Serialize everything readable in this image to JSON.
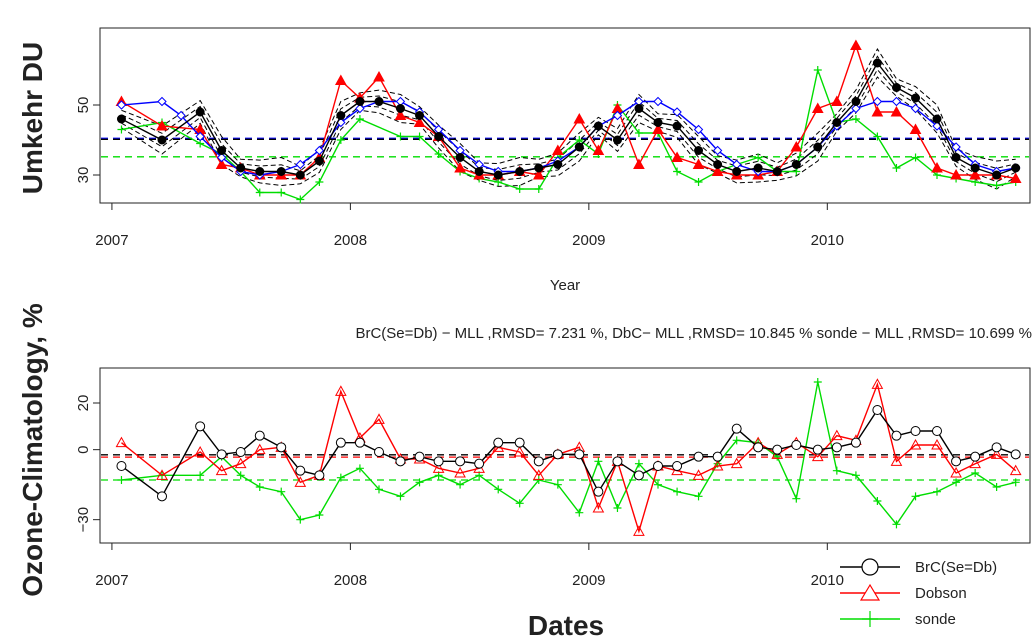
{
  "colors": {
    "brc": "#000000",
    "dobson": "#ff0000",
    "sonde": "#00dd00",
    "umkehr_model": "#0000ff",
    "ensemble": "#000000"
  },
  "chart_data": [
    {
      "type": "line",
      "ylabel": "Umkehr DU",
      "xlabel": "Year",
      "xlim": [
        2006.95,
        2010.85
      ],
      "ylim": [
        22,
        72
      ],
      "x_ticks": [
        "2007",
        "2008",
        "2009",
        "2010"
      ],
      "y_ticks": [
        "30",
        "50"
      ],
      "grid": false,
      "x": [
        2007.04,
        2007.12,
        2007.21,
        2007.29,
        2007.37,
        2007.46,
        2007.54,
        2007.62,
        2007.71,
        2007.79,
        2007.87,
        2007.96,
        2008.04,
        2008.12,
        2008.21,
        2008.29,
        2008.37,
        2008.46,
        2008.54,
        2008.62,
        2008.71,
        2008.79,
        2008.87,
        2008.96,
        2009.04,
        2009.12,
        2009.21,
        2009.29,
        2009.37,
        2009.46,
        2009.54,
        2009.62,
        2009.71,
        2009.79,
        2009.87,
        2009.96,
        2010.04,
        2010.12,
        2010.21,
        2010.29,
        2010.37,
        2010.46,
        2010.54,
        2010.62,
        2010.71,
        2010.79
      ],
      "series": [
        {
          "color_key": "brc",
          "marker": "filled-circle",
          "values": [
            46,
            null,
            40,
            null,
            48,
            37,
            32,
            31,
            31,
            30,
            34,
            47,
            51,
            51,
            49,
            47,
            41,
            35,
            31,
            30,
            31,
            32,
            33,
            38,
            44,
            40,
            49,
            45,
            44,
            37,
            33,
            31,
            32,
            31,
            33,
            38,
            45,
            51,
            62,
            55,
            52,
            46,
            35,
            32,
            30,
            32
          ]
        },
        {
          "color_key": "dobson",
          "marker": "filled-triangle",
          "values": [
            51,
            null,
            44,
            null,
            43,
            33,
            32,
            30,
            30,
            30,
            35,
            57,
            52,
            58,
            47,
            45,
            41,
            32,
            30,
            30,
            31,
            30,
            37,
            46,
            37,
            49,
            33,
            43,
            35,
            33,
            31,
            30,
            30,
            31,
            38,
            49,
            51,
            67,
            48,
            48,
            43,
            32,
            30,
            30,
            30,
            29
          ]
        },
        {
          "color_key": "sonde",
          "marker": "plus",
          "values": [
            43,
            null,
            45,
            null,
            39,
            36,
            31,
            25,
            25,
            23,
            28,
            40,
            46,
            null,
            41,
            41,
            36,
            31,
            29,
            28,
            26,
            26,
            35,
            40,
            36,
            50,
            42,
            42,
            31,
            28,
            31,
            33,
            35,
            31,
            31,
            60,
            45,
            46,
            41,
            32,
            35,
            30,
            29,
            28,
            27,
            28
          ]
        },
        {
          "color_key": "umkehr_model",
          "marker": "open-diamond",
          "values": [
            50,
            null,
            51,
            47,
            41,
            35,
            31,
            30,
            31,
            33,
            37,
            45,
            49,
            51,
            51,
            48,
            43,
            37,
            33,
            31,
            31,
            32,
            34,
            38,
            44,
            47,
            51,
            51,
            48,
            43,
            37,
            33,
            31,
            31,
            33,
            38,
            44,
            49,
            51,
            51,
            49,
            44,
            38,
            33,
            31,
            32
          ]
        }
      ],
      "hlines": [
        {
          "color_key": "umkehr_model",
          "y": 40.5
        },
        {
          "color_key": "ensemble",
          "y": 40.2
        },
        {
          "color_key": "sonde",
          "y": 35.2
        }
      ]
    },
    {
      "type": "line",
      "title": "BrC(Se=Db) − MLL ,RMSD= 7.231 %, DbC− MLL ,RMSD= 10.845 % sonde − MLL ,RMSD= 10.699 %",
      "ylabel": "Ozone-Climatology, %",
      "xlabel": "Dates",
      "xlim": [
        2006.95,
        2010.85
      ],
      "ylim": [
        -40,
        35
      ],
      "x_ticks": [
        "2007",
        "2008",
        "2009",
        "2010"
      ],
      "y_ticks": [
        "20",
        "0",
        "−30"
      ],
      "grid": false,
      "x": [
        2007.04,
        2007.21,
        2007.37,
        2007.46,
        2007.54,
        2007.62,
        2007.71,
        2007.79,
        2007.87,
        2007.96,
        2008.04,
        2008.12,
        2008.21,
        2008.29,
        2008.37,
        2008.46,
        2008.54,
        2008.62,
        2008.71,
        2008.79,
        2008.87,
        2008.96,
        2009.04,
        2009.12,
        2009.21,
        2009.29,
        2009.37,
        2009.46,
        2009.54,
        2009.62,
        2009.71,
        2009.79,
        2009.87,
        2009.96,
        2010.04,
        2010.12,
        2010.21,
        2010.29,
        2010.37,
        2010.46,
        2010.54,
        2010.62,
        2010.71,
        2010.79
      ],
      "series": [
        {
          "name": "BrC(Se=Db)",
          "color_key": "brc",
          "marker": "open-circle",
          "values": [
            -7,
            -20,
            10,
            -2,
            -1,
            6,
            1,
            -9,
            -11,
            3,
            3,
            -1,
            -5,
            -3,
            -5,
            -5,
            -6,
            3,
            3,
            -5,
            -2,
            -2,
            -18,
            -5,
            -11,
            -7,
            -7,
            -3,
            -3,
            9,
            1,
            0,
            2,
            0,
            1,
            3,
            17,
            6,
            8,
            8,
            -5,
            -3,
            1,
            -2
          ]
        },
        {
          "name": "Dobson",
          "color_key": "dobson",
          "marker": "open-triangle",
          "values": [
            3,
            -11,
            -1,
            -9,
            -6,
            0,
            1,
            -14,
            -11,
            25,
            5,
            13,
            -4,
            -4,
            -8,
            -10,
            -8,
            1,
            -1,
            -11,
            -2,
            1,
            -25,
            -5,
            -35,
            -7,
            -9,
            -11,
            -7,
            -6,
            3,
            -2,
            3,
            -3,
            6,
            4,
            28,
            -5,
            2,
            2,
            -10,
            -6,
            -2,
            -9
          ]
        },
        {
          "name": "sonde",
          "color_key": "sonde",
          "marker": "plus",
          "values": [
            -13,
            -11,
            -11,
            -3,
            -11,
            -16,
            -18,
            -30,
            -28,
            -12,
            -8,
            -17,
            -20,
            -14,
            -11,
            -15,
            -11,
            -17,
            -23,
            -13,
            -15,
            -27,
            -5,
            -25,
            -6,
            -15,
            -18,
            -20,
            -6,
            4,
            3,
            -3,
            -21,
            29,
            -9,
            -11,
            -22,
            -32,
            -20,
            -18,
            -14,
            -10,
            -16,
            -14
          ]
        }
      ],
      "hlines": [
        {
          "color_key": "ensemble",
          "y": -2.2
        },
        {
          "color_key": "dobson",
          "y": -3.2
        },
        {
          "color_key": "sonde",
          "y": -13
        }
      ],
      "legend": {
        "placement": "bottom-right",
        "entries": [
          "BrC(Se=Db)",
          "Dobson",
          "sonde"
        ]
      }
    }
  ]
}
